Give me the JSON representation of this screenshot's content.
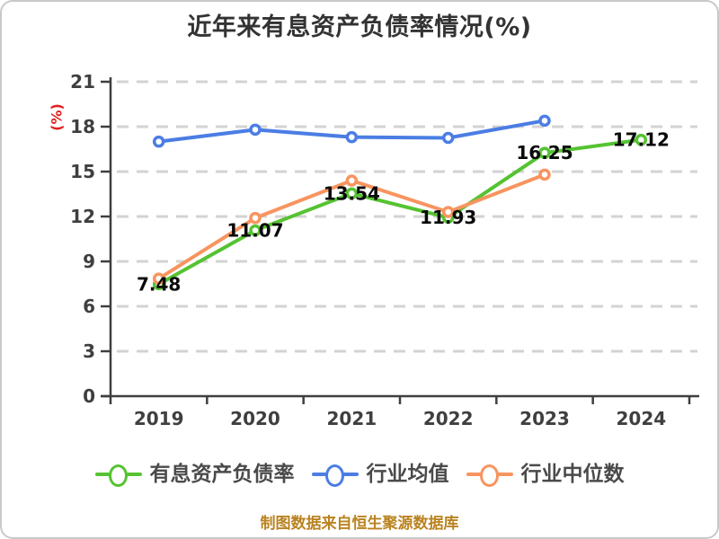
{
  "title": "近年来有息资产负债率情况(%)",
  "y_unit_label": "(%)",
  "footer_note": "制图数据来自恒生聚源数据库",
  "colors": {
    "series_green": "#55C331",
    "series_blue": "#4B7DE4",
    "series_orange": "#F8945F",
    "grid": "#D3D3D3",
    "axis": "#3F3F3F",
    "tick_label": "#3F3F3F",
    "title_text": "#333333",
    "data_label": "#0A0A0A",
    "legend_text": "#4A4A4A",
    "unit_label_red": "#E02020",
    "footer_text": "#BA8320"
  },
  "legend": {
    "items": [
      {
        "label": "有息资产负债率",
        "color": "#55C331"
      },
      {
        "label": "行业均值",
        "color": "#4B7DE4"
      },
      {
        "label": "行业中位数",
        "color": "#F8945F"
      }
    ]
  },
  "chart_data": {
    "type": "line",
    "title": "近年来有息资产负债率情况(%)",
    "xlabel": "",
    "ylabel": "(%)",
    "categories": [
      "2019",
      "2020",
      "2021",
      "2022",
      "2023",
      "2024"
    ],
    "series": [
      {
        "name": "有息资产负债率",
        "color": "#55C331",
        "values": [
          7.48,
          11.07,
          13.54,
          11.93,
          16.25,
          17.12
        ],
        "point_labels": [
          "7.48",
          "11.07",
          "13.54",
          "11.93",
          "16.25",
          "17.12"
        ]
      },
      {
        "name": "行业均值",
        "color": "#4B7DE4",
        "values": [
          17.0,
          17.8,
          17.3,
          17.25,
          18.4,
          null
        ],
        "point_labels": []
      },
      {
        "name": "行业中位数",
        "color": "#F8945F",
        "values": [
          7.85,
          11.9,
          14.4,
          12.3,
          14.8,
          null
        ],
        "point_labels": []
      }
    ],
    "ylim": [
      0,
      21
    ],
    "yticks": [
      0,
      3,
      6,
      9,
      12,
      15,
      18,
      21
    ],
    "grid": "horizontal-dashed",
    "legend_position": "bottom"
  }
}
